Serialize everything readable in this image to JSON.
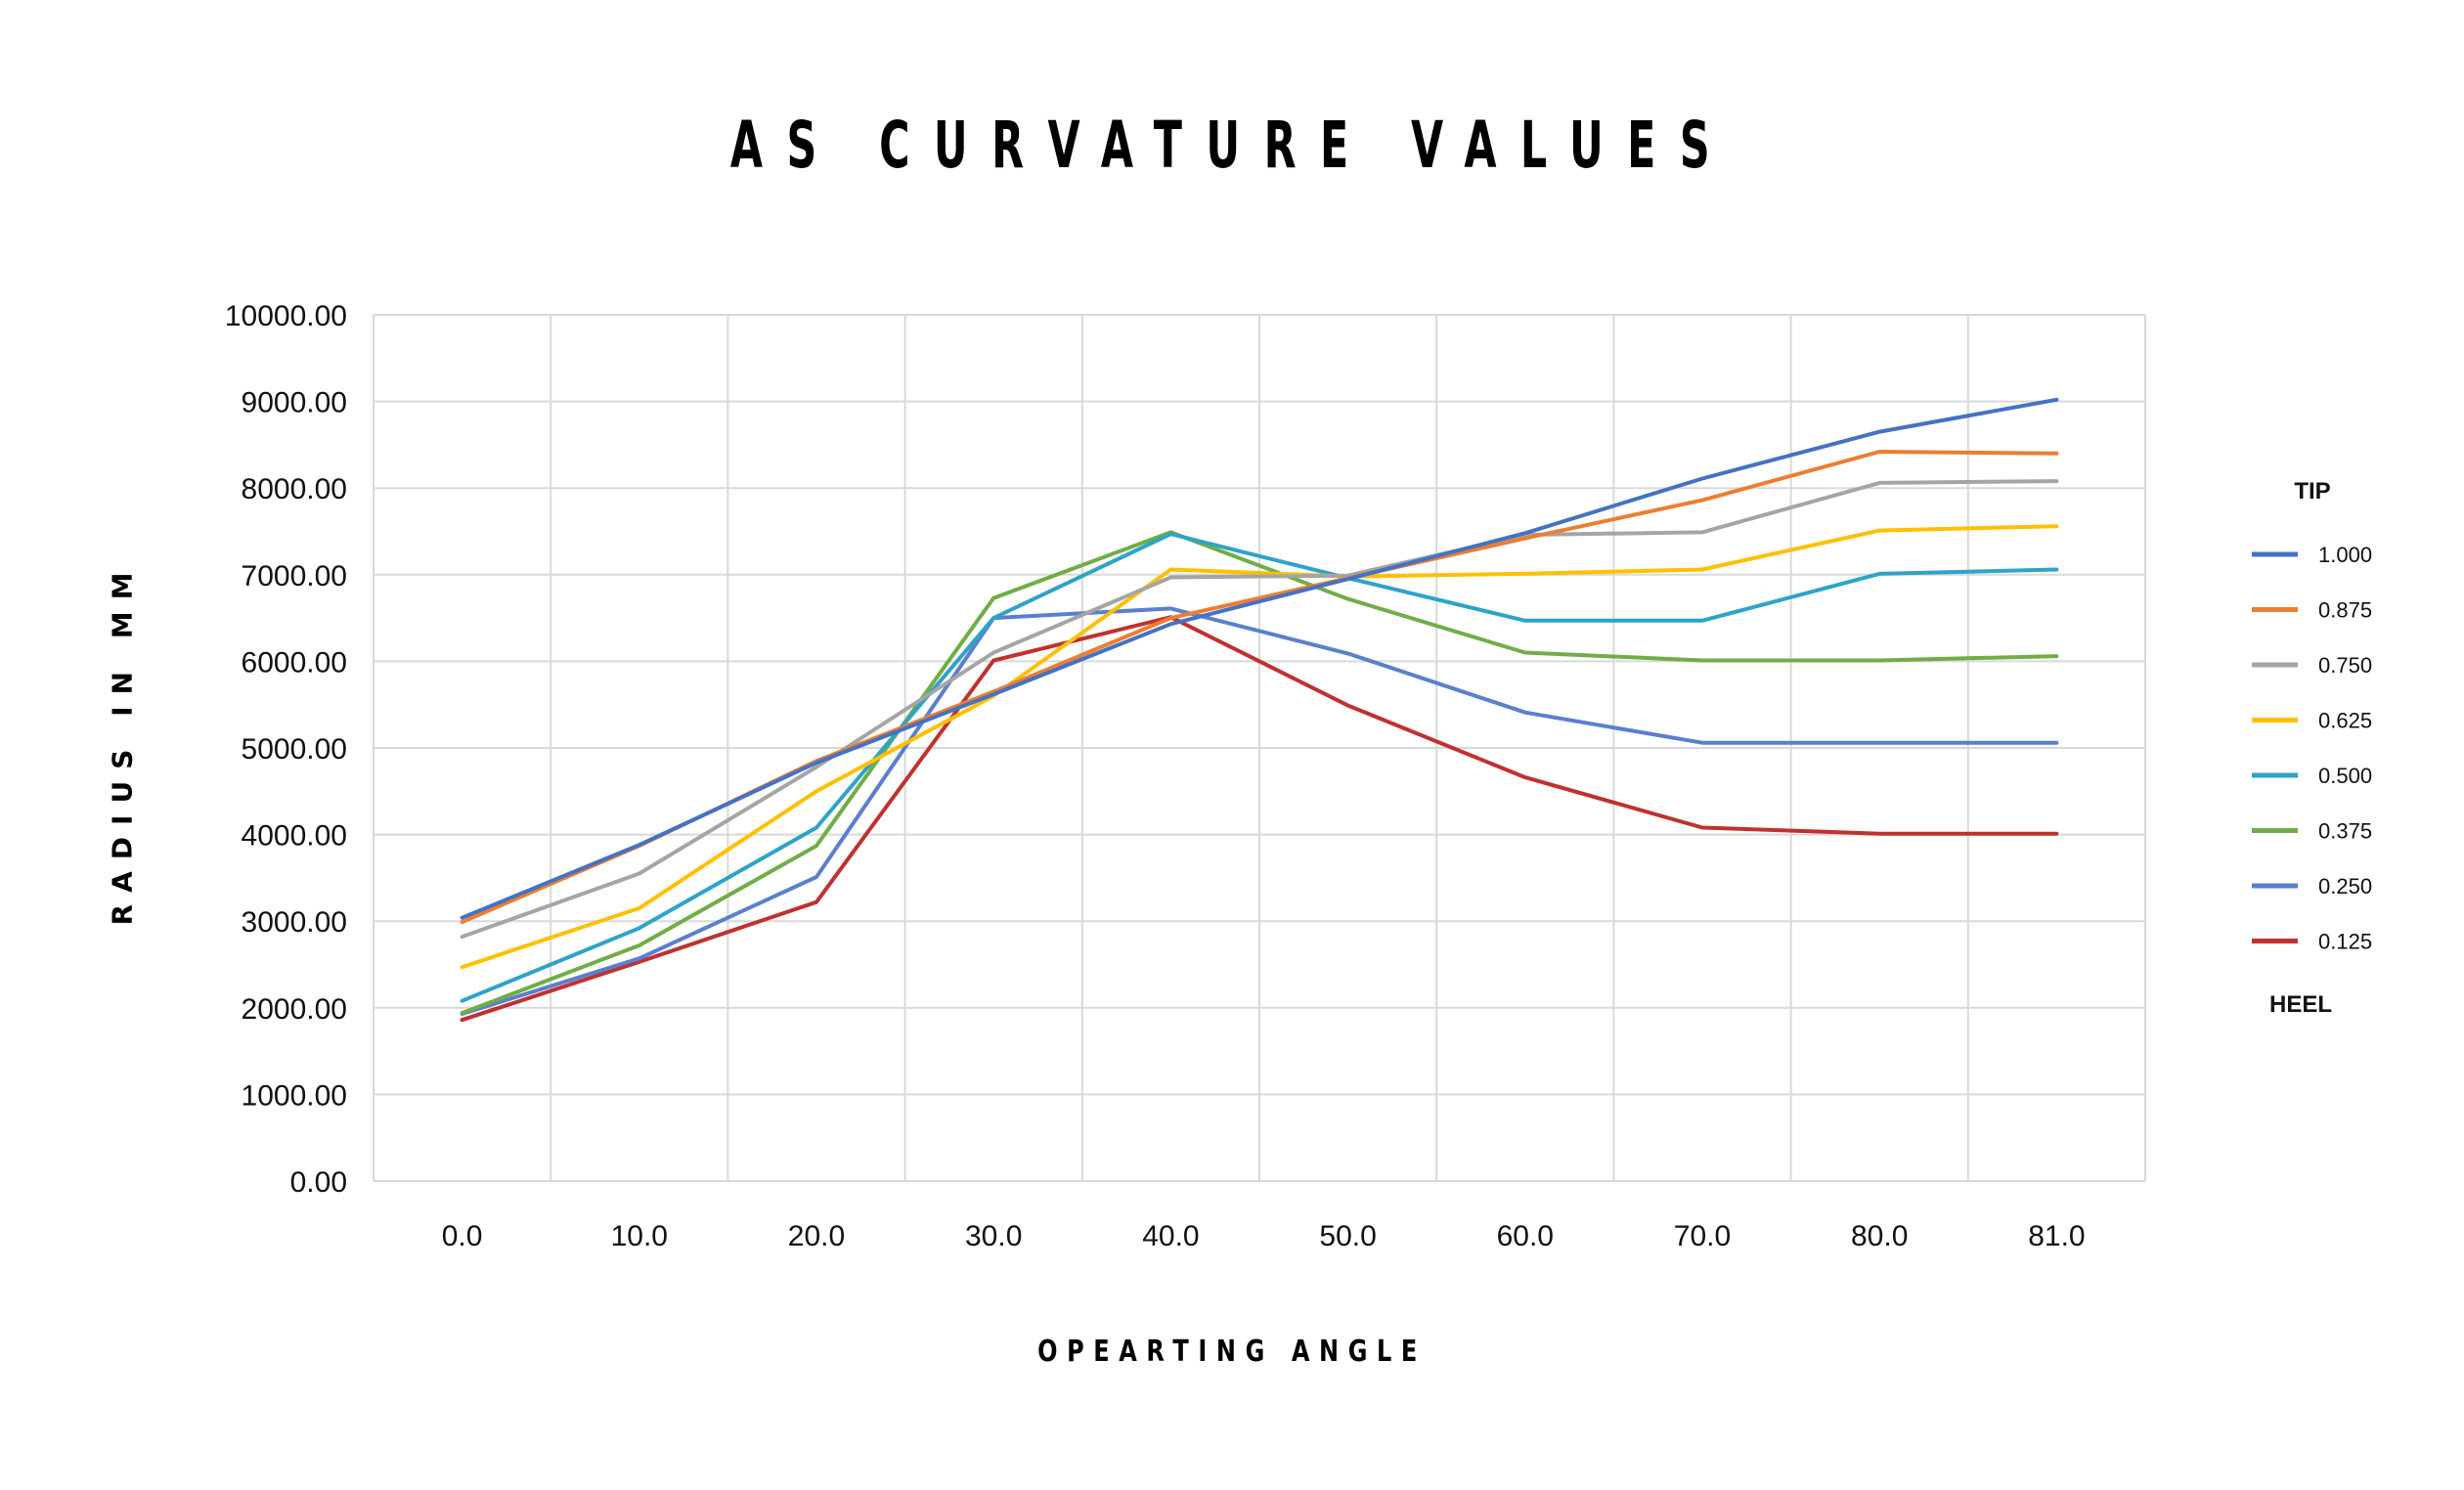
{
  "chart_data": {
    "type": "line",
    "title": "AS CURVATURE VALUES",
    "xlabel": "OPEARTING ANGLE",
    "ylabel": "RADIUS IN MM",
    "categories": [
      "0.0",
      "10.0",
      "20.0",
      "30.0",
      "40.0",
      "50.0",
      "60.0",
      "70.0",
      "80.0",
      "81.0"
    ],
    "y_ticks": [
      "0.00",
      "1000.00",
      "2000.00",
      "3000.00",
      "4000.00",
      "5000.00",
      "6000.00",
      "7000.00",
      "8000.00",
      "9000.00",
      "10000.00"
    ],
    "ylim": [
      0,
      10000
    ],
    "grid": true,
    "legend": {
      "position": "right",
      "top_label": "TIP",
      "bottom_label": "HEEL"
    },
    "series": [
      {
        "name": "1.000",
        "color": "#4472c4",
        "values": [
          3040,
          3880,
          4830,
          5620,
          6430,
          6950,
          7480,
          8110,
          8650,
          9020
        ]
      },
      {
        "name": "0.875",
        "color": "#ed7d31",
        "values": [
          2990,
          3870,
          4850,
          5650,
          6500,
          6960,
          7420,
          7860,
          8420,
          8400
        ]
      },
      {
        "name": "0.750",
        "color": "#a5a5a5",
        "values": [
          2820,
          3550,
          4780,
          6100,
          6970,
          6990,
          7460,
          7490,
          8060,
          8080
        ]
      },
      {
        "name": "0.625",
        "color": "#ffc000",
        "values": [
          2470,
          3150,
          4500,
          5600,
          7060,
          6980,
          7010,
          7060,
          7510,
          7560
        ]
      },
      {
        "name": "0.500",
        "color": "#2ea3c9",
        "values": [
          2080,
          2920,
          4080,
          6500,
          7470,
          6960,
          6470,
          6470,
          7010,
          7060
        ]
      },
      {
        "name": "0.375",
        "color": "#70ad47",
        "values": [
          1940,
          2720,
          3870,
          6730,
          7490,
          6720,
          6100,
          6010,
          6010,
          6060
        ]
      },
      {
        "name": "0.250",
        "color": "#5b7fcf",
        "values": [
          1930,
          2570,
          3510,
          6500,
          6610,
          6090,
          5410,
          5060,
          5060,
          5060
        ]
      },
      {
        "name": "0.125",
        "color": "#c0312f",
        "values": [
          1860,
          2530,
          3220,
          6010,
          6510,
          5490,
          4660,
          4080,
          4010,
          4010
        ]
      }
    ]
  }
}
